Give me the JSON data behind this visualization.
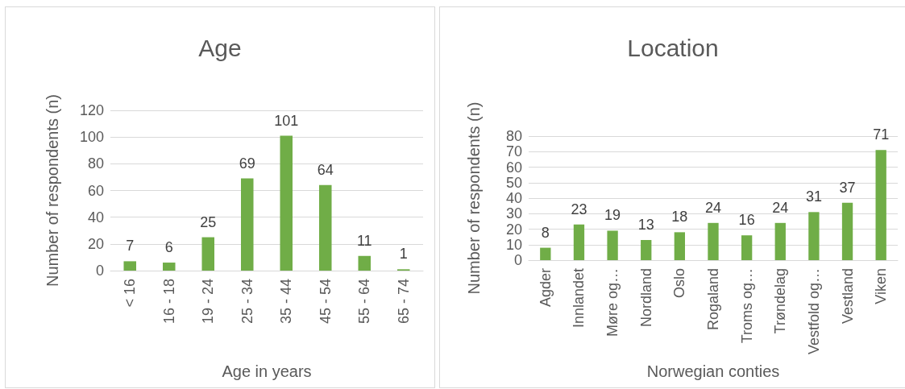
{
  "chart_data": [
    {
      "type": "bar",
      "title": "Age",
      "xlabel": "Age in years",
      "ylabel": "Number of respondents (n)",
      "categories": [
        "< 16",
        "16 - 18",
        "19 - 24",
        "25 - 34",
        "35 - 44",
        "45 - 54",
        "55 - 64",
        "65 - 74"
      ],
      "values": [
        7,
        6,
        25,
        69,
        101,
        64,
        11,
        1
      ],
      "color": "#70ad47",
      "ylim": [
        0,
        120
      ],
      "yticks": [
        0,
        20,
        40,
        60,
        80,
        100,
        120
      ],
      "grid": "y",
      "data_labels": true
    },
    {
      "type": "bar",
      "title": "Location",
      "xlabel": "Norwegian conties",
      "ylabel": "Number of respondents (n)",
      "categories": [
        "Agder",
        "Innlandet",
        "Møre og…",
        "Nordland",
        "Oslo",
        "Rogaland",
        "Troms og…",
        "Trøndelag",
        "Vestfold og…",
        "Vestland",
        "Viken"
      ],
      "values": [
        8,
        23,
        19,
        13,
        18,
        24,
        16,
        24,
        31,
        37,
        71
      ],
      "color": "#70ad47",
      "ylim": [
        0,
        80
      ],
      "yticks": [
        0,
        10,
        20,
        30,
        40,
        50,
        60,
        70,
        80
      ],
      "grid": "y",
      "data_labels": true
    }
  ]
}
